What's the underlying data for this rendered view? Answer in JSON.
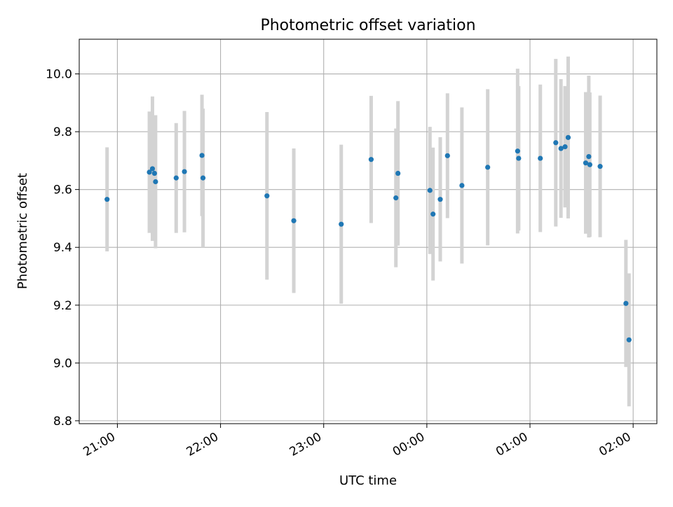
{
  "chart_data": {
    "type": "scatter",
    "title": "Photometric offset variation",
    "xlabel": "UTC time",
    "ylabel": "Photometric offset",
    "x_axis_kind": "time",
    "x_reference_time": "20:00",
    "xlim_hours": [
      0.63,
      6.23
    ],
    "ylim": [
      8.79,
      10.12
    ],
    "grid": true,
    "x_ticks": [
      {
        "value": 1,
        "label": "21:00"
      },
      {
        "value": 2,
        "label": "22:00"
      },
      {
        "value": 3,
        "label": "23:00"
      },
      {
        "value": 4,
        "label": "00:00"
      },
      {
        "value": 5,
        "label": "01:00"
      },
      {
        "value": 6,
        "label": "02:00"
      }
    ],
    "y_ticks": [
      {
        "value": 8.8,
        "label": "8.8"
      },
      {
        "value": 9.0,
        "label": "9.0"
      },
      {
        "value": 9.2,
        "label": "9.2"
      },
      {
        "value": 9.4,
        "label": "9.4"
      },
      {
        "value": 9.6,
        "label": "9.6"
      },
      {
        "value": 9.8,
        "label": "9.8"
      },
      {
        "value": 10.0,
        "label": "10.0"
      }
    ],
    "marker_color": "#1f77b4",
    "errorbar_color": "#d3d3d3",
    "series": [
      {
        "points": [
          {
            "x": 0.9,
            "y": 9.566,
            "err": 0.18
          },
          {
            "x": 1.31,
            "y": 9.66,
            "err": 0.21
          },
          {
            "x": 1.34,
            "y": 9.672,
            "err": 0.25
          },
          {
            "x": 1.36,
            "y": 9.656,
            "err": 0.2
          },
          {
            "x": 1.37,
            "y": 9.627,
            "err": 0.23
          },
          {
            "x": 1.57,
            "y": 9.64,
            "err": 0.19
          },
          {
            "x": 1.65,
            "y": 9.662,
            "err": 0.21
          },
          {
            "x": 1.82,
            "y": 9.718,
            "err": 0.21
          },
          {
            "x": 1.83,
            "y": 9.64,
            "err": 0.24
          },
          {
            "x": 2.45,
            "y": 9.578,
            "err": 0.29
          },
          {
            "x": 2.71,
            "y": 9.492,
            "err": 0.25
          },
          {
            "x": 3.17,
            "y": 9.48,
            "err": 0.275
          },
          {
            "x": 3.46,
            "y": 9.704,
            "err": 0.22
          },
          {
            "x": 3.7,
            "y": 9.571,
            "err": 0.24
          },
          {
            "x": 3.72,
            "y": 9.656,
            "err": 0.25
          },
          {
            "x": 4.03,
            "y": 9.597,
            "err": 0.22
          },
          {
            "x": 4.06,
            "y": 9.515,
            "err": 0.23
          },
          {
            "x": 4.13,
            "y": 9.566,
            "err": 0.215
          },
          {
            "x": 4.2,
            "y": 9.717,
            "err": 0.216
          },
          {
            "x": 4.34,
            "y": 9.614,
            "err": 0.27
          },
          {
            "x": 4.59,
            "y": 9.677,
            "err": 0.27
          },
          {
            "x": 4.88,
            "y": 9.733,
            "err": 0.285
          },
          {
            "x": 4.89,
            "y": 9.708,
            "err": 0.25
          },
          {
            "x": 5.1,
            "y": 9.708,
            "err": 0.255
          },
          {
            "x": 5.25,
            "y": 9.762,
            "err": 0.29
          },
          {
            "x": 5.3,
            "y": 9.742,
            "err": 0.24
          },
          {
            "x": 5.34,
            "y": 9.748,
            "err": 0.21
          },
          {
            "x": 5.37,
            "y": 9.78,
            "err": 0.28
          },
          {
            "x": 5.54,
            "y": 9.692,
            "err": 0.245
          },
          {
            "x": 5.57,
            "y": 9.714,
            "err": 0.28
          },
          {
            "x": 5.58,
            "y": 9.686,
            "err": 0.25
          },
          {
            "x": 5.68,
            "y": 9.68,
            "err": 0.245
          },
          {
            "x": 5.93,
            "y": 9.206,
            "err": 0.22
          },
          {
            "x": 5.96,
            "y": 9.08,
            "err": 0.23
          }
        ]
      }
    ]
  }
}
